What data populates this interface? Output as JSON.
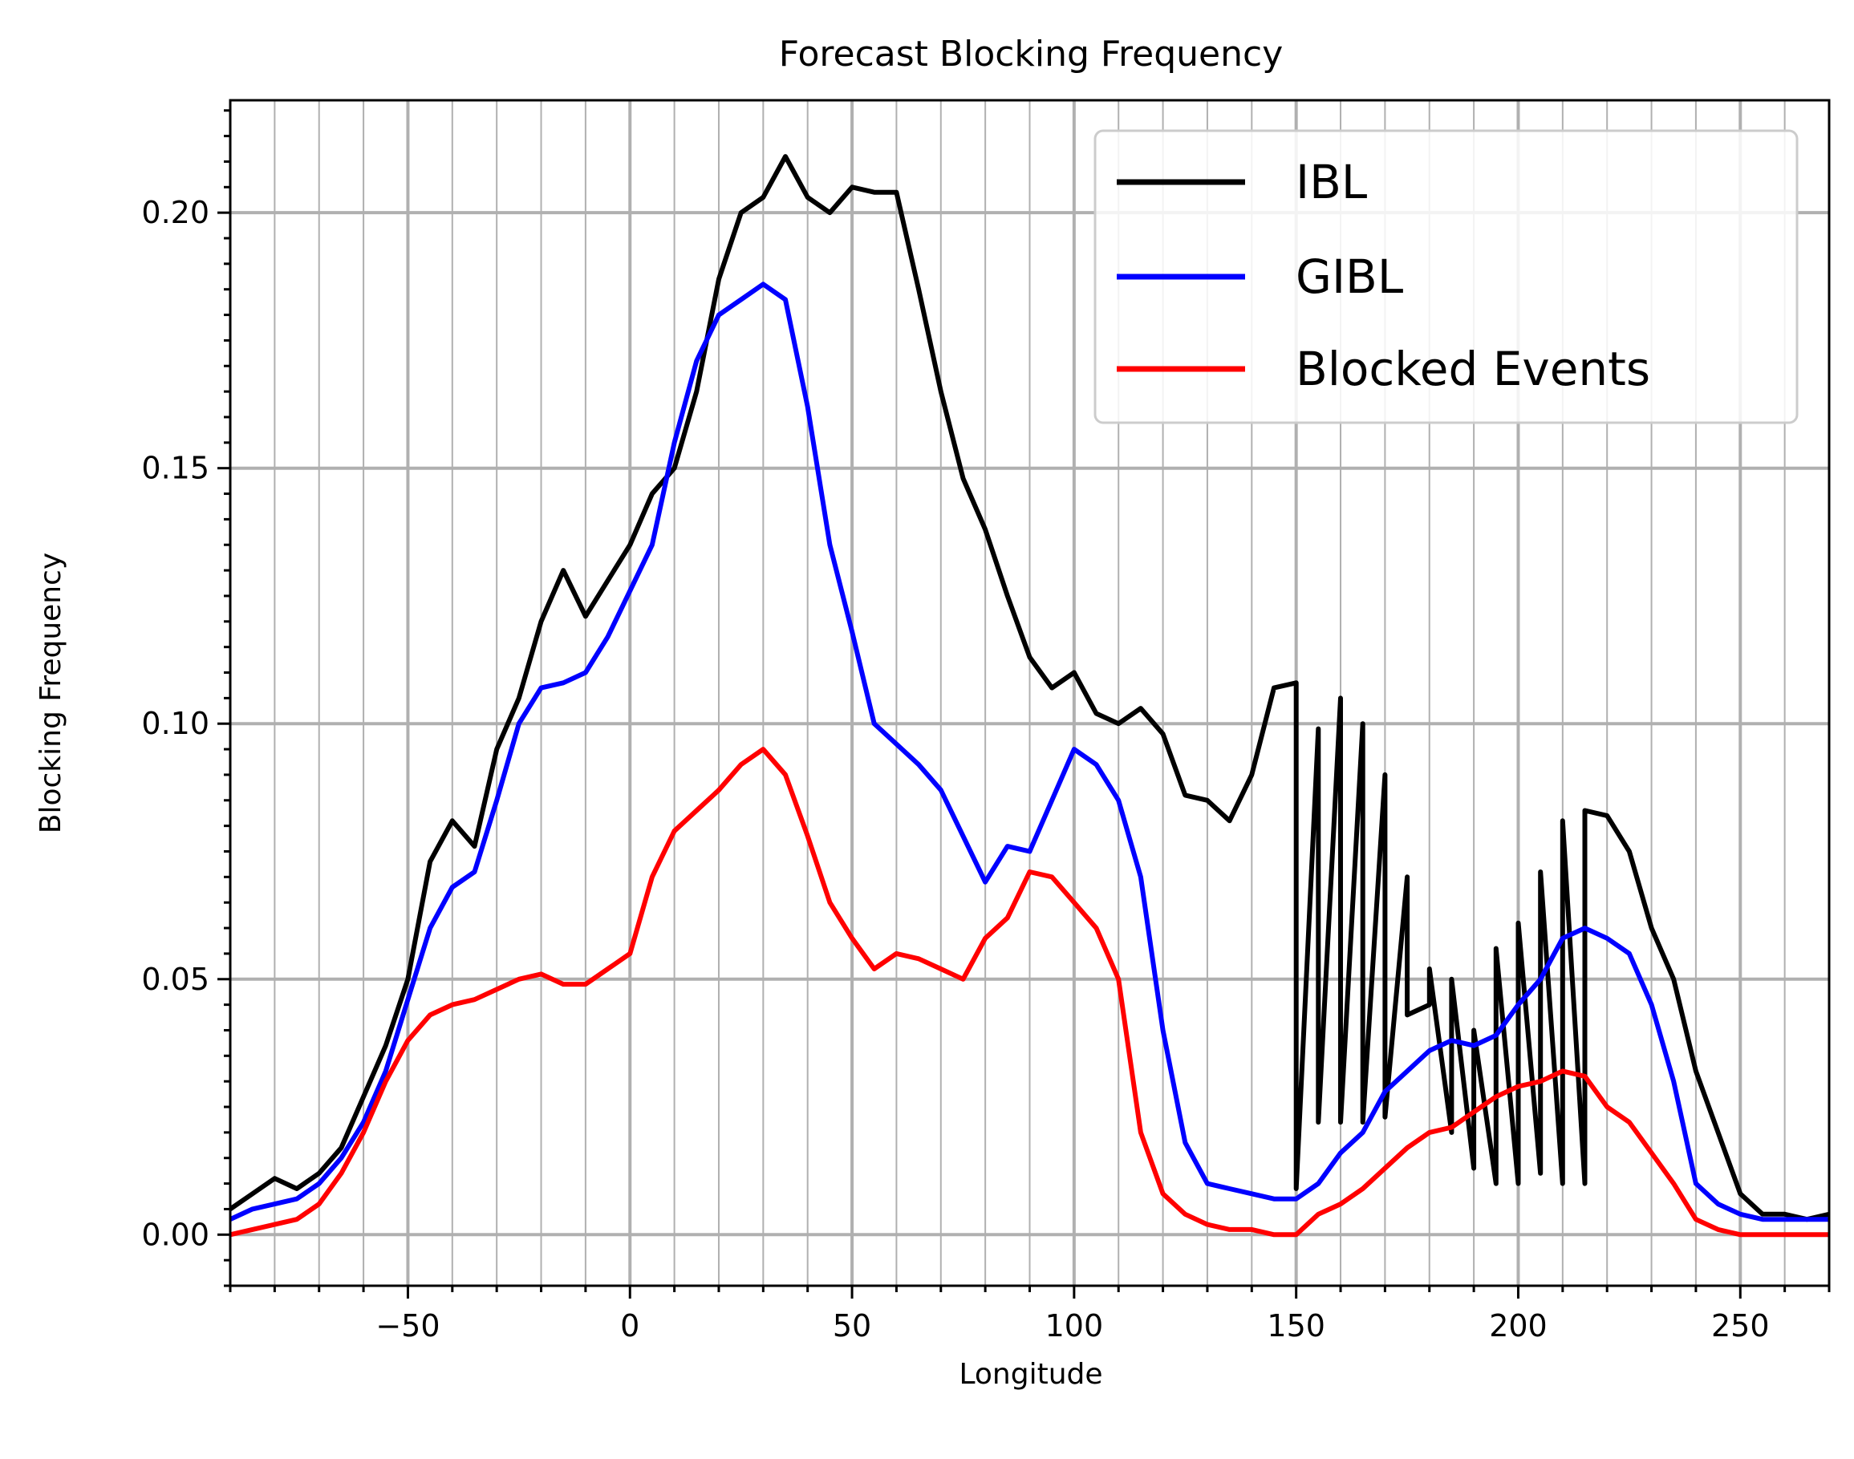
{
  "chart_data": {
    "type": "line",
    "title": "Forecast Blocking Frequency",
    "xlabel": "Longitude",
    "ylabel": "Blocking Frequency",
    "xlim": [
      -90,
      270
    ],
    "ylim": [
      -0.01,
      0.222
    ],
    "x_major_ticks": [
      -50,
      0,
      50,
      100,
      150,
      200,
      250
    ],
    "x_tick_labels": [
      "−50",
      "0",
      "50",
      "100",
      "150",
      "200",
      "250"
    ],
    "x_minor_step": 10,
    "y_major_ticks": [
      0.0,
      0.05,
      0.1,
      0.15,
      0.2
    ],
    "y_tick_labels": [
      "0.00",
      "0.05",
      "0.10",
      "0.15",
      "0.20"
    ],
    "y_minor_step": 0.005,
    "grid": true,
    "legend_position": "top-right",
    "series": [
      {
        "name": "IBL",
        "color": "#000000",
        "points": [
          [
            -90,
            0.005
          ],
          [
            -85,
            0.008
          ],
          [
            -80,
            0.011
          ],
          [
            -75,
            0.009
          ],
          [
            -70,
            0.012
          ],
          [
            -65,
            0.017
          ],
          [
            -60,
            0.027
          ],
          [
            -55,
            0.037
          ],
          [
            -50,
            0.05
          ],
          [
            -45,
            0.073
          ],
          [
            -40,
            0.081
          ],
          [
            -35,
            0.076
          ],
          [
            -30,
            0.095
          ],
          [
            -25,
            0.105
          ],
          [
            -20,
            0.12
          ],
          [
            -15,
            0.13
          ],
          [
            -10,
            0.121
          ],
          [
            -5,
            0.128
          ],
          [
            0,
            0.135
          ],
          [
            5,
            0.145
          ],
          [
            10,
            0.15
          ],
          [
            15,
            0.165
          ],
          [
            20,
            0.187
          ],
          [
            25,
            0.2
          ],
          [
            30,
            0.203
          ],
          [
            35,
            0.211
          ],
          [
            40,
            0.203
          ],
          [
            45,
            0.2
          ],
          [
            50,
            0.205
          ],
          [
            55,
            0.204
          ],
          [
            60,
            0.204
          ],
          [
            65,
            0.185
          ],
          [
            70,
            0.165
          ],
          [
            75,
            0.148
          ],
          [
            80,
            0.138
          ],
          [
            85,
            0.125
          ],
          [
            90,
            0.113
          ],
          [
            95,
            0.107
          ],
          [
            100,
            0.11
          ],
          [
            105,
            0.102
          ],
          [
            110,
            0.1
          ],
          [
            115,
            0.103
          ],
          [
            120,
            0.098
          ],
          [
            125,
            0.086
          ],
          [
            130,
            0.085
          ],
          [
            135,
            0.081
          ],
          [
            140,
            0.09
          ],
          [
            145,
            0.107
          ],
          [
            150,
            0.108
          ],
          [
            155,
            0.099
          ],
          [
            160,
            0.105
          ],
          [
            165,
            0.1
          ],
          [
            170,
            0.09
          ],
          [
            175,
            0.07
          ],
          [
            180,
            0.045
          ],
          [
            185,
            0.02
          ],
          [
            190,
            0.013
          ],
          [
            195,
            0.01
          ],
          [
            200,
            0.01
          ],
          [
            205,
            0.012
          ],
          [
            210,
            0.01
          ],
          [
            215,
            0.01
          ],
          [
            150,
            0.009
          ],
          [
            155,
            0.022
          ],
          [
            160,
            0.022
          ],
          [
            165,
            0.022
          ],
          [
            170,
            0.023
          ],
          [
            175,
            0.043
          ],
          [
            180,
            0.052
          ],
          [
            185,
            0.05
          ],
          [
            190,
            0.04
          ],
          [
            195,
            0.056
          ],
          [
            200,
            0.061
          ],
          [
            205,
            0.071
          ],
          [
            210,
            0.081
          ],
          [
            215,
            0.083
          ],
          [
            220,
            0.082
          ],
          [
            225,
            0.075
          ],
          [
            230,
            0.06
          ],
          [
            235,
            0.05
          ],
          [
            240,
            0.032
          ],
          [
            245,
            0.02
          ],
          [
            250,
            0.008
          ],
          [
            255,
            0.004
          ],
          [
            260,
            0.004
          ],
          [
            265,
            0.003
          ],
          [
            270,
            0.004
          ]
        ]
      },
      {
        "name": "GIBL",
        "color": "#0000ff",
        "points": [
          [
            -90,
            0.003
          ],
          [
            -85,
            0.005
          ],
          [
            -80,
            0.006
          ],
          [
            -75,
            0.007
          ],
          [
            -70,
            0.01
          ],
          [
            -65,
            0.015
          ],
          [
            -60,
            0.022
          ],
          [
            -55,
            0.032
          ],
          [
            -50,
            0.046
          ],
          [
            -45,
            0.06
          ],
          [
            -40,
            0.068
          ],
          [
            -35,
            0.071
          ],
          [
            -30,
            0.085
          ],
          [
            -25,
            0.1
          ],
          [
            -20,
            0.107
          ],
          [
            -15,
            0.108
          ],
          [
            -10,
            0.11
          ],
          [
            -5,
            0.117
          ],
          [
            0,
            0.126
          ],
          [
            5,
            0.135
          ],
          [
            10,
            0.155
          ],
          [
            15,
            0.171
          ],
          [
            20,
            0.18
          ],
          [
            25,
            0.183
          ],
          [
            30,
            0.186
          ],
          [
            35,
            0.183
          ],
          [
            40,
            0.162
          ],
          [
            45,
            0.135
          ],
          [
            50,
            0.118
          ],
          [
            55,
            0.1
          ],
          [
            60,
            0.096
          ],
          [
            65,
            0.092
          ],
          [
            70,
            0.087
          ],
          [
            75,
            0.078
          ],
          [
            80,
            0.069
          ],
          [
            85,
            0.076
          ],
          [
            90,
            0.075
          ],
          [
            95,
            0.085
          ],
          [
            100,
            0.095
          ],
          [
            105,
            0.092
          ],
          [
            110,
            0.085
          ],
          [
            115,
            0.07
          ],
          [
            120,
            0.04
          ],
          [
            125,
            0.018
          ],
          [
            130,
            0.01
          ],
          [
            135,
            0.009
          ],
          [
            140,
            0.008
          ],
          [
            145,
            0.007
          ],
          [
            150,
            0.007
          ],
          [
            155,
            0.01
          ],
          [
            160,
            0.016
          ],
          [
            165,
            0.02
          ],
          [
            170,
            0.028
          ],
          [
            175,
            0.032
          ],
          [
            180,
            0.036
          ],
          [
            185,
            0.038
          ],
          [
            190,
            0.037
          ],
          [
            195,
            0.039
          ],
          [
            200,
            0.045
          ],
          [
            205,
            0.05
          ],
          [
            210,
            0.058
          ],
          [
            215,
            0.06
          ],
          [
            220,
            0.058
          ],
          [
            225,
            0.055
          ],
          [
            230,
            0.045
          ],
          [
            235,
            0.03
          ],
          [
            240,
            0.01
          ],
          [
            245,
            0.006
          ],
          [
            250,
            0.004
          ],
          [
            255,
            0.003
          ],
          [
            260,
            0.003
          ],
          [
            265,
            0.003
          ],
          [
            270,
            0.003
          ]
        ]
      },
      {
        "name": "Blocked Events",
        "color": "#ff0000",
        "points": [
          [
            -90,
            0.0
          ],
          [
            -85,
            0.001
          ],
          [
            -80,
            0.002
          ],
          [
            -75,
            0.003
          ],
          [
            -70,
            0.006
          ],
          [
            -65,
            0.012
          ],
          [
            -60,
            0.02
          ],
          [
            -55,
            0.03
          ],
          [
            -50,
            0.038
          ],
          [
            -45,
            0.043
          ],
          [
            -40,
            0.045
          ],
          [
            -35,
            0.046
          ],
          [
            -30,
            0.048
          ],
          [
            -25,
            0.05
          ],
          [
            -20,
            0.051
          ],
          [
            -15,
            0.049
          ],
          [
            -10,
            0.049
          ],
          [
            -5,
            0.052
          ],
          [
            0,
            0.055
          ],
          [
            5,
            0.07
          ],
          [
            10,
            0.079
          ],
          [
            15,
            0.083
          ],
          [
            20,
            0.087
          ],
          [
            25,
            0.092
          ],
          [
            30,
            0.095
          ],
          [
            35,
            0.09
          ],
          [
            40,
            0.078
          ],
          [
            45,
            0.065
          ],
          [
            50,
            0.058
          ],
          [
            55,
            0.052
          ],
          [
            60,
            0.055
          ],
          [
            65,
            0.054
          ],
          [
            70,
            0.052
          ],
          [
            75,
            0.05
          ],
          [
            80,
            0.058
          ],
          [
            85,
            0.062
          ],
          [
            90,
            0.071
          ],
          [
            95,
            0.07
          ],
          [
            100,
            0.065
          ],
          [
            105,
            0.06
          ],
          [
            110,
            0.05
          ],
          [
            115,
            0.02
          ],
          [
            120,
            0.008
          ],
          [
            125,
            0.004
          ],
          [
            130,
            0.002
          ],
          [
            135,
            0.001
          ],
          [
            140,
            0.001
          ],
          [
            145,
            0.0
          ],
          [
            150,
            0.0
          ],
          [
            155,
            0.004
          ],
          [
            160,
            0.006
          ],
          [
            165,
            0.009
          ],
          [
            170,
            0.013
          ],
          [
            175,
            0.017
          ],
          [
            180,
            0.02
          ],
          [
            185,
            0.021
          ],
          [
            190,
            0.024
          ],
          [
            195,
            0.027
          ],
          [
            200,
            0.029
          ],
          [
            205,
            0.03
          ],
          [
            210,
            0.032
          ],
          [
            215,
            0.031
          ],
          [
            220,
            0.025
          ],
          [
            225,
            0.022
          ],
          [
            230,
            0.016
          ],
          [
            235,
            0.01
          ],
          [
            240,
            0.003
          ],
          [
            245,
            0.001
          ],
          [
            250,
            0.0
          ],
          [
            255,
            0.0
          ],
          [
            260,
            0.0
          ],
          [
            265,
            0.0
          ],
          [
            270,
            0.0
          ]
        ]
      }
    ]
  }
}
